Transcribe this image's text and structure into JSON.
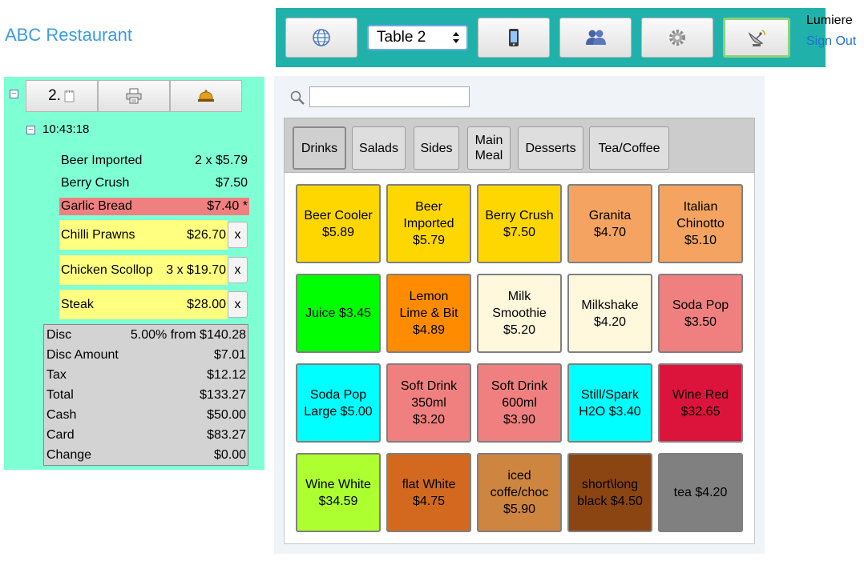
{
  "app": {
    "title": "ABC Restaurant"
  },
  "topbar": {
    "table_select": "Table 2",
    "user_name": "Lumiere",
    "sign_out": "Sign Out"
  },
  "order": {
    "order_number": "2.",
    "time": "10:43:18",
    "items": [
      {
        "name": "Beer Imported",
        "price": "2 x $5.79",
        "style": "plain"
      },
      {
        "name": "Berry Crush",
        "price": "$7.50",
        "style": "plain"
      },
      {
        "name": "Garlic Bread",
        "price": "$7.40 *",
        "style": "red"
      },
      {
        "name": "Chilli Prawns",
        "price": "$26.70",
        "style": "yellow",
        "remove": "x"
      },
      {
        "name": "Chicken Scollop",
        "price": "3 x $19.70",
        "style": "yellow",
        "remove": "x"
      },
      {
        "name": "Steak",
        "price": "$28.00",
        "style": "yellow",
        "remove": "x"
      }
    ],
    "summary": [
      {
        "label": "Disc",
        "value": "5.00% from $140.28"
      },
      {
        "label": "Disc Amount",
        "value": "$7.01"
      },
      {
        "label": "Tax",
        "value": "$12.12"
      },
      {
        "label": "Total",
        "value": "$133.27"
      },
      {
        "label": "Cash",
        "value": "$50.00"
      },
      {
        "label": "Card",
        "value": "$83.27"
      },
      {
        "label": "Change",
        "value": "$0.00"
      }
    ]
  },
  "menu": {
    "search_value": "",
    "tabs": [
      {
        "label": "Drinks",
        "active": true
      },
      {
        "label": "Salads"
      },
      {
        "label": "Sides"
      },
      {
        "label": "Main\nMeal"
      },
      {
        "label": "Desserts"
      },
      {
        "label": "Tea/Coffee"
      }
    ],
    "tiles": [
      {
        "label": "Beer Cooler\n$5.89",
        "color": "#ffd700"
      },
      {
        "label": "Beer\nImported\n$5.79",
        "color": "#ffd700"
      },
      {
        "label": "Berry Crush\n$7.50",
        "color": "#ffd700"
      },
      {
        "label": "Granita\n$4.70",
        "color": "#f4a460"
      },
      {
        "label": "Italian\nChinotto\n$5.10",
        "color": "#f4a460"
      },
      {
        "label": "Juice $3.45",
        "color": "#00ff00"
      },
      {
        "label": "Lemon\nLime & Bit\n$4.89",
        "color": "#ff8c00"
      },
      {
        "label": "Milk\nSmoothie\n$5.20",
        "color": "#fff8dc"
      },
      {
        "label": "Milkshake\n$4.20",
        "color": "#fff8dc"
      },
      {
        "label": "Soda Pop\n$3.50",
        "color": "#f08080"
      },
      {
        "label": "Soda Pop\nLarge $5.00",
        "color": "#00ffff"
      },
      {
        "label": "Soft Drink\n350ml\n$3.20",
        "color": "#f08080"
      },
      {
        "label": "Soft Drink\n600ml\n$3.90",
        "color": "#f08080"
      },
      {
        "label": "Still/Spark\nH2O $3.40",
        "color": "#00ffff"
      },
      {
        "label": "Wine Red\n$32.65",
        "color": "#dc143c"
      },
      {
        "label": "Wine White\n$34.59",
        "color": "#adff2f"
      },
      {
        "label": "flat White\n$4.75",
        "color": "#d2691e"
      },
      {
        "label": "iced\ncoffe/choc\n$5.90",
        "color": "#cd853f"
      },
      {
        "label": "short\\long\nblack $4.50",
        "color": "#8b4513"
      },
      {
        "label": "tea $4.20",
        "color": "#808080"
      }
    ]
  },
  "icons": {
    "globe": "globe-icon",
    "phone": "phone-icon",
    "users": "users-icon",
    "gear": "gear-icon",
    "satellite": "satellite-icon",
    "notepad": "notepad-icon",
    "printer": "printer-icon",
    "bell": "bell-icon",
    "search": "magnifier-icon"
  }
}
